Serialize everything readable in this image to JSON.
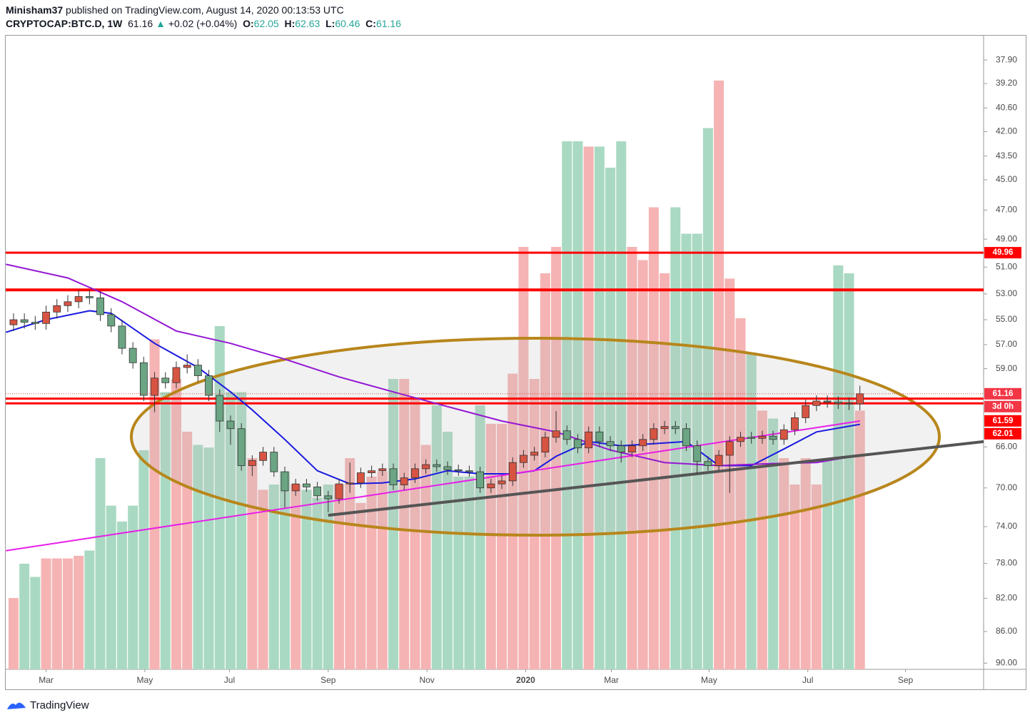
{
  "header": {
    "author": "Minisham37",
    "published": "published on TradingView.com, August 14, 2020 00:13:53 UTC",
    "symbol": "CRYPTOCAP:BTC.D, 1W",
    "change_arrow": "▲",
    "change": "+0.02 (+0.04%)",
    "o_label": "O:",
    "h_label": "H:",
    "l_label": "L:",
    "c_label": "C:"
  },
  "footer": {
    "brand": "TradingView"
  },
  "chart_data": {
    "type": "candlestick",
    "log": true,
    "inverted": true,
    "grid": false,
    "up_color": "#6ba583",
    "down_color": "#d75442",
    "volume_up_color": "#a9d9c2",
    "volume_down_color": "#f5b3b3",
    "xlim": [
      -0.72,
      89.4
    ],
    "ylim": [
      36.6,
      90.8
    ],
    "vlim": [
      0,
      240
    ],
    "xticks": [
      {
        "value": 3.0,
        "label": "Mar"
      },
      {
        "value": 12.1,
        "label": "May"
      },
      {
        "value": 19.9,
        "label": "Jul"
      },
      {
        "value": 29.0,
        "label": "Sep"
      },
      {
        "value": 38.1,
        "label": "Nov"
      },
      {
        "value": 47.2,
        "label": "2020"
      },
      {
        "value": 55.1,
        "label": "Mar"
      },
      {
        "value": 64.1,
        "label": "May"
      },
      {
        "value": 73.2,
        "label": "Jul"
      },
      {
        "value": 82.2,
        "label": "Sep"
      }
    ],
    "yticks": [
      {
        "value": 37.9,
        "label": "37.90"
      },
      {
        "value": 39.2,
        "label": "39.20"
      },
      {
        "value": 40.6,
        "label": "40.60"
      },
      {
        "value": 42,
        "label": "42.00"
      },
      {
        "value": 43.5,
        "label": "43.50"
      },
      {
        "value": 45,
        "label": "45.00"
      },
      {
        "value": 47,
        "label": "47.00"
      },
      {
        "value": 49,
        "label": "49.00"
      },
      {
        "value": 51,
        "label": "51.00"
      },
      {
        "value": 53,
        "label": "53.00"
      },
      {
        "value": 55,
        "label": "55.00"
      },
      {
        "value": 57,
        "label": "57.00"
      },
      {
        "value": 59,
        "label": "59.00"
      },
      {
        "value": 66,
        "label": "66.00"
      },
      {
        "value": 70,
        "label": "70.00"
      },
      {
        "value": 74,
        "label": "74.00"
      },
      {
        "value": 78,
        "label": "78.00"
      },
      {
        "value": 82,
        "label": "82.00"
      },
      {
        "value": 86,
        "label": "86.00"
      },
      {
        "value": 90,
        "label": "90.00"
      }
    ],
    "open": [
      55.4,
      55.0,
      55.2,
      55.3,
      54.4,
      53.9,
      53.6,
      53.2,
      53.3,
      54.6,
      55.5,
      57.3,
      58.5,
      61.3,
      59.8,
      60.2,
      58.9,
      58.7,
      59.6,
      61.3,
      63.6,
      64.3,
      67.8,
      67.3,
      66.5,
      68.4,
      70.3,
      69.6,
      69.9,
      70.8,
      71.1,
      69.6,
      69.5,
      68.5,
      68.3,
      68.1,
      69.7,
      69.0,
      68.1,
      67.7,
      67.9,
      68.2,
      68.3,
      68.4,
      70.0,
      69.6,
      69.3,
      67.5,
      66.8,
      66.5,
      65.1,
      64.5,
      65.3,
      66.1,
      64.6,
      65.5,
      65.9,
      66.5,
      65.9,
      65.3,
      64.3,
      64.1,
      64.3,
      65.9,
      67.4,
      67.8,
      66.8,
      65.5,
      65.1,
      65.2,
      65.0,
      65.3,
      64.4,
      63.3,
      62.2,
      61.8,
      61.9,
      62.0,
      62.05
    ],
    "high": [
      55.9,
      55.7,
      55.8,
      55.8,
      54.9,
      54.4,
      54.1,
      53.8,
      55.1,
      56.0,
      57.8,
      59.0,
      61.8,
      62.8,
      60.7,
      60.7,
      59.4,
      60.1,
      61.8,
      64.6,
      65.8,
      68.3,
      68.8,
      67.8,
      68.9,
      72.0,
      70.8,
      70.4,
      71.3,
      72.5,
      71.6,
      70.5,
      70.0,
      69.0,
      68.8,
      70.2,
      70.2,
      69.5,
      68.6,
      68.4,
      68.7,
      68.8,
      68.9,
      70.5,
      70.5,
      70.1,
      69.8,
      68.0,
      67.3,
      67.0,
      65.6,
      65.8,
      66.6,
      66.6,
      66.0,
      66.4,
      67.5,
      67.0,
      66.4,
      65.8,
      64.8,
      64.8,
      66.4,
      68.6,
      68.3,
      68.3,
      70.5,
      66.0,
      65.7,
      65.7,
      65.8,
      65.8,
      64.9,
      63.8,
      62.7,
      62.4,
      62.5,
      62.6,
      62.63
    ],
    "low": [
      54.5,
      54.5,
      54.7,
      53.9,
      53.4,
      53.1,
      52.7,
      52.7,
      52.8,
      54.1,
      55.0,
      56.8,
      58.0,
      59.3,
      59.3,
      58.4,
      57.8,
      58.2,
      59.1,
      60.8,
      63.1,
      63.8,
      66.8,
      66.0,
      66.0,
      67.9,
      69.1,
      69.1,
      69.4,
      70.3,
      69.1,
      67.5,
      68.0,
      67.8,
      67.6,
      67.6,
      68.5,
      67.6,
      67.2,
      67.2,
      67.4,
      67.7,
      67.8,
      67.9,
      69.1,
      68.8,
      67.0,
      66.3,
      66.0,
      64.6,
      62.7,
      64.0,
      64.8,
      64.1,
      64.1,
      65.0,
      65.4,
      65.4,
      64.8,
      63.8,
      63.6,
      63.6,
      63.8,
      65.4,
      66.9,
      66.3,
      65.0,
      64.6,
      64.6,
      64.5,
      64.5,
      63.9,
      62.8,
      61.7,
      61.3,
      61.3,
      61.4,
      61.5,
      60.46
    ],
    "close": [
      55.0,
      55.2,
      55.3,
      54.4,
      53.9,
      53.6,
      53.2,
      53.3,
      54.6,
      55.5,
      57.3,
      58.5,
      61.3,
      59.8,
      60.2,
      58.9,
      58.7,
      59.6,
      61.3,
      63.6,
      64.3,
      67.8,
      67.3,
      66.5,
      68.4,
      70.3,
      69.6,
      69.9,
      70.8,
      71.1,
      69.6,
      69.5,
      68.5,
      68.3,
      68.1,
      69.7,
      69.0,
      68.1,
      67.7,
      67.9,
      68.2,
      68.3,
      68.4,
      70.0,
      69.6,
      69.3,
      67.5,
      66.8,
      66.5,
      65.1,
      64.5,
      65.3,
      66.1,
      64.6,
      65.5,
      65.9,
      66.5,
      65.9,
      65.3,
      64.3,
      64.1,
      64.3,
      65.9,
      67.4,
      67.8,
      66.8,
      65.5,
      65.1,
      65.2,
      65.0,
      65.3,
      64.4,
      63.3,
      62.2,
      61.8,
      61.9,
      62.0,
      62.05,
      61.16
    ],
    "volume": [
      27,
      40,
      35,
      42,
      42,
      42,
      43,
      45,
      80,
      62,
      56,
      62,
      83,
      125,
      105,
      110,
      90,
      85,
      84,
      130,
      105,
      105,
      80,
      68,
      70,
      75,
      70,
      68,
      65,
      70,
      70,
      80,
      63,
      73,
      75,
      110,
      110,
      103,
      85,
      100,
      90,
      73,
      73,
      100,
      93,
      93,
      112,
      160,
      110,
      150,
      160,
      200,
      200,
      198,
      198,
      190,
      200,
      160,
      155,
      175,
      150,
      175,
      165,
      165,
      205,
      223,
      148,
      133,
      120,
      98,
      95,
      80,
      70,
      80,
      70,
      80,
      153,
      150,
      98
    ],
    "overlays": [
      {
        "color": "#1a1ae0",
        "width": 2,
        "x": [
          -0.7,
          3,
          7,
          9,
          13,
          17,
          20,
          22,
          25,
          28,
          31,
          34,
          37,
          40,
          43,
          46,
          48,
          50,
          53,
          56,
          59,
          62,
          65,
          68,
          71,
          74,
          78
        ],
        "values": [
          56.0,
          55.0,
          54.3,
          54.5,
          56.9,
          58.9,
          61.0,
          62.6,
          65.3,
          68.3,
          69.6,
          69.5,
          69.1,
          68.3,
          68.6,
          68.6,
          68.3,
          66.9,
          65.5,
          65.9,
          65.7,
          65.5,
          67.8,
          67.8,
          66.2,
          64.6,
          63.9
        ]
      },
      {
        "color": "#9417d3",
        "width": 2,
        "x": [
          -0.7,
          5,
          10,
          15,
          20,
          25,
          30,
          35,
          40,
          45,
          50,
          55,
          60,
          65,
          70,
          74,
          78
        ],
        "values": [
          50.8,
          51.8,
          53.6,
          55.9,
          56.9,
          58.2,
          59.7,
          61.0,
          62.3,
          63.6,
          64.6,
          66.3,
          67.5,
          67.8,
          67.6,
          67.5,
          66.8
        ]
      },
      {
        "color": "#e81ee8",
        "width": 2,
        "x": [
          -0.7,
          78
        ],
        "values": [
          76.6,
          63.6
        ]
      },
      {
        "color": "#555555",
        "width": 4,
        "x": [
          29,
          89.4
        ],
        "values": [
          72.8,
          65.5
        ]
      }
    ],
    "level_color": "#ff0000",
    "marked_levels": [
      49.96,
      61.59,
      62.01
    ],
    "levels": [
      52.7
    ],
    "countdown": "3d 0h"
  }
}
